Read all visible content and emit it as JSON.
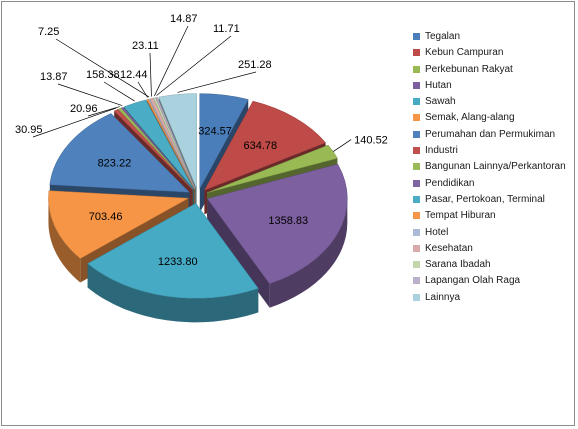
{
  "chart_data": {
    "type": "pie",
    "title": "",
    "categories": [
      "Tegalan",
      "Kebun Campuran",
      "Perkebunan Rakyat",
      "Hutan",
      "Sawah",
      "Semak, Alang-alang",
      "Perumahan dan Permukiman",
      "Industri",
      "Bangunan Lainnya/Perkantoran",
      "Pendidikan",
      "Pasar, Pertokoan, Terminal",
      "Tempat Hiburan",
      "Hotel",
      "Kesehatan",
      "Sarana Ibadah",
      "Lapangan Olah Raga",
      "Lainnya"
    ],
    "values": [
      324.57,
      634.78,
      140.52,
      1358.83,
      1233.8,
      703.46,
      823.22,
      30.95,
      20.96,
      13.87,
      158.38,
      12.44,
      7.25,
      23.11,
      14.87,
      11.71,
      251.28
    ],
    "data_labels": [
      "324.57",
      "634.78",
      "140.52",
      "1358.83",
      "1233.80",
      "703.46",
      "823.22",
      "30.95",
      "20.96",
      "13.87",
      "158.38",
      "12.44",
      "7.25",
      "23.11",
      "14.87",
      "11.71",
      "251.28"
    ],
    "colors": [
      "#4A7EBB",
      "#BE4B48",
      "#98B954",
      "#7D60A0",
      "#46AAC5",
      "#F69546",
      "#4F81BD",
      "#C0504D",
      "#9BBB59",
      "#8064A2",
      "#4BACC6",
      "#F79646",
      "#AABAD7",
      "#D9AAA9",
      "#C6D6AC",
      "#BAB0C9",
      "#A9D2DE"
    ],
    "exploded": true,
    "style_3d": true,
    "legend_position": "right"
  }
}
